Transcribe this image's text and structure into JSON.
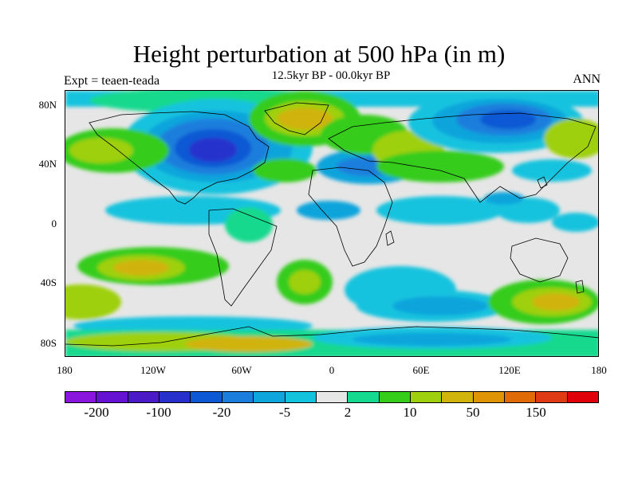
{
  "header": {
    "title": "Height perturbation at 500 hPa (in m)",
    "subtitle": "12.5kyr BP - 00.0kyr BP",
    "left_label": "Expt = teaen-teada",
    "right_label": "ANN"
  },
  "map": {
    "projection": "cylindrical-equidistant",
    "lat_labels": [
      "80N",
      "40N",
      "0",
      "40S",
      "80S"
    ],
    "lon_labels": [
      "180",
      "120W",
      "60W",
      "0",
      "60E",
      "120E",
      "180"
    ]
  },
  "legend": {
    "colors": [
      "#8a16de",
      "#6612d2",
      "#4a1ac7",
      "#2830cc",
      "#0d58d4",
      "#1b7edc",
      "#0ea4dc",
      "#13c3de",
      "#e6e6e6",
      "#15d98e",
      "#35cc1a",
      "#9fd00e",
      "#d0b40b",
      "#df9406",
      "#df6a06",
      "#e03a14",
      "#e0000a"
    ],
    "labels": [
      "-200",
      "-100",
      "-20",
      "-5",
      "2",
      "10",
      "50",
      "150"
    ]
  }
}
